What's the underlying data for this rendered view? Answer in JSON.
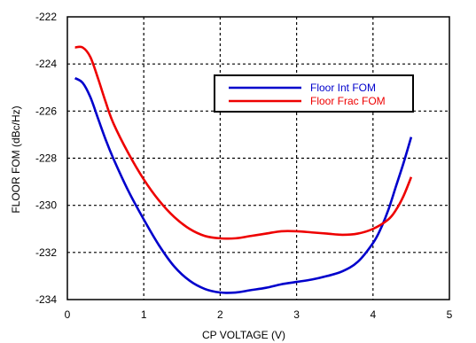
{
  "chart_data": {
    "type": "line",
    "title": "",
    "xlabel": "CP VOLTAGE (V)",
    "ylabel": "FLOOR FOM (dBc/Hz)",
    "xlim": [
      0,
      5
    ],
    "ylim": [
      -234,
      -222
    ],
    "x_ticks": [
      0,
      1,
      2,
      3,
      4,
      5
    ],
    "y_ticks": [
      -234,
      -232,
      -230,
      -228,
      -226,
      -224,
      -222
    ],
    "x_tick_labels": [
      "0",
      "1",
      "2",
      "3",
      "4",
      "5"
    ],
    "y_tick_labels": [
      "-234",
      "-232",
      "-230",
      "-228",
      "-226",
      "-224",
      "-222"
    ],
    "grid": true,
    "legend_position": "upper-center",
    "series": [
      {
        "name": "Floor Int FOM",
        "color": "#0000cc",
        "points": [
          [
            0.1,
            -224.6
          ],
          [
            0.2,
            -224.8
          ],
          [
            0.3,
            -225.4
          ],
          [
            0.4,
            -226.3
          ],
          [
            0.5,
            -227.2
          ],
          [
            0.6,
            -228.0
          ],
          [
            0.8,
            -229.4
          ],
          [
            1.0,
            -230.6
          ],
          [
            1.2,
            -231.7
          ],
          [
            1.4,
            -232.6
          ],
          [
            1.6,
            -233.2
          ],
          [
            1.8,
            -233.55
          ],
          [
            2.0,
            -233.7
          ],
          [
            2.2,
            -233.7
          ],
          [
            2.4,
            -233.6
          ],
          [
            2.6,
            -233.5
          ],
          [
            2.8,
            -233.35
          ],
          [
            3.0,
            -233.25
          ],
          [
            3.2,
            -233.15
          ],
          [
            3.4,
            -233.0
          ],
          [
            3.6,
            -232.8
          ],
          [
            3.8,
            -232.4
          ],
          [
            4.0,
            -231.6
          ],
          [
            4.1,
            -231.0
          ],
          [
            4.2,
            -230.2
          ],
          [
            4.3,
            -229.2
          ],
          [
            4.4,
            -228.2
          ],
          [
            4.5,
            -227.1
          ]
        ]
      },
      {
        "name": "Floor Frac FOM",
        "color": "#ee0000",
        "points": [
          [
            0.1,
            -223.3
          ],
          [
            0.2,
            -223.3
          ],
          [
            0.3,
            -223.7
          ],
          [
            0.4,
            -224.6
          ],
          [
            0.5,
            -225.6
          ],
          [
            0.6,
            -226.5
          ],
          [
            0.8,
            -227.8
          ],
          [
            1.0,
            -228.9
          ],
          [
            1.2,
            -229.8
          ],
          [
            1.4,
            -230.5
          ],
          [
            1.6,
            -231.0
          ],
          [
            1.8,
            -231.3
          ],
          [
            2.0,
            -231.4
          ],
          [
            2.2,
            -231.4
          ],
          [
            2.4,
            -231.3
          ],
          [
            2.6,
            -231.2
          ],
          [
            2.8,
            -231.1
          ],
          [
            3.0,
            -231.1
          ],
          [
            3.2,
            -231.15
          ],
          [
            3.4,
            -231.2
          ],
          [
            3.6,
            -231.25
          ],
          [
            3.8,
            -231.2
          ],
          [
            4.0,
            -231.0
          ],
          [
            4.2,
            -230.6
          ],
          [
            4.3,
            -230.2
          ],
          [
            4.4,
            -229.6
          ],
          [
            4.5,
            -228.8
          ]
        ]
      }
    ]
  }
}
